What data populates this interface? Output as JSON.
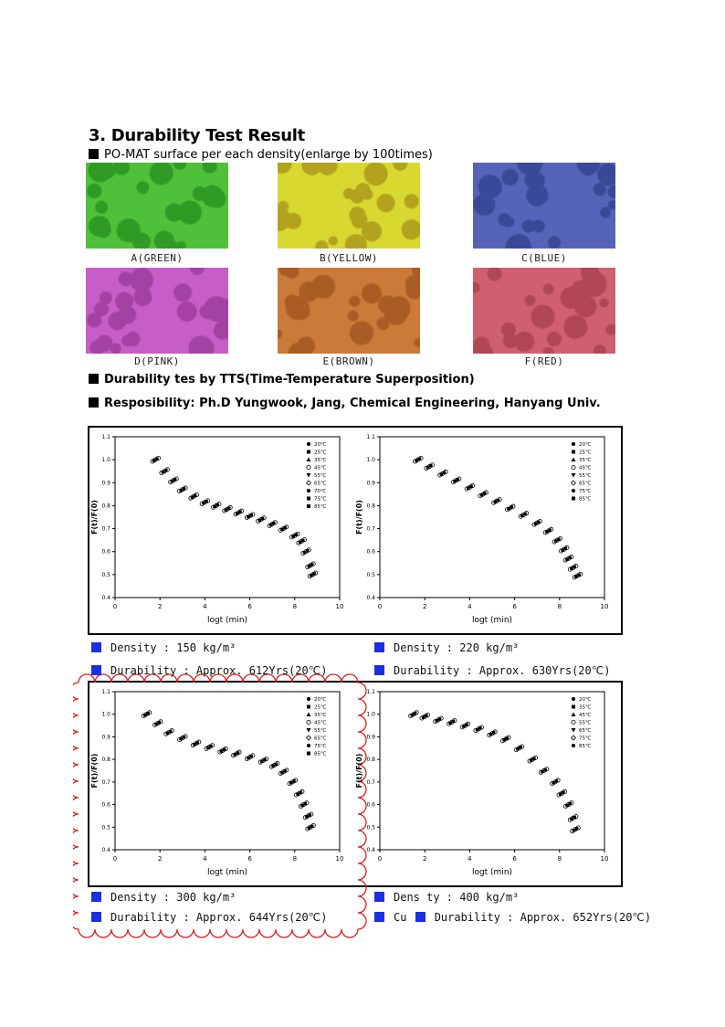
{
  "section_title": "3. Durability Test Result",
  "surface_heading": "PO-MAT surface per each density(enlarge by 100times)",
  "swatches": [
    {
      "label": "A(GREEN)",
      "color": "#4fc03a",
      "spot": "#2f9a24"
    },
    {
      "label": "B(YELLOW)",
      "color": "#d8d830",
      "spot": "#b3a21e"
    },
    {
      "label": "C(BLUE)",
      "color": "#5563b8",
      "spot": "#3a4898"
    },
    {
      "label": "D(PINK)",
      "color": "#c75ec7",
      "spot": "#a442a4"
    },
    {
      "label": "E(BROWN)",
      "color": "#cc7a3a",
      "spot": "#a95c24"
    },
    {
      "label": "F(RED)",
      "color": "#d06070",
      "spot": "#b04656"
    }
  ],
  "tts_line": "Durability tes by  TTS(Time-Temperature Superposition)",
  "resp_line": "Resposibility: Ph.D Yungwook, Jang, Chemical Engineering, Hanyang Univ.",
  "chart_data": [
    {
      "type": "scatter",
      "xlabel": "logt (min)",
      "ylabel": "F(t)/F(0)",
      "xlim": [
        0,
        10
      ],
      "ylim": [
        0.4,
        1.1
      ],
      "xticks": [
        "0",
        "2",
        "4",
        "6",
        "8",
        "10"
      ],
      "yticks": [
        "0.4",
        "0.5",
        "0.6",
        "0.7",
        "0.8",
        "0.9",
        "1.0",
        "1.1"
      ],
      "legend_position": "top-right",
      "legend": [
        "20℃",
        "25℃",
        "35℃",
        "45℃",
        "55℃",
        "65℃",
        "70℃",
        "75℃",
        "85℃"
      ],
      "x": [
        1.8,
        2.2,
        2.6,
        3.0,
        3.5,
        4.0,
        4.5,
        5.0,
        5.5,
        6.0,
        6.5,
        7.0,
        7.5,
        8.0,
        8.3,
        8.5,
        8.7,
        8.8
      ],
      "y": [
        1.0,
        0.95,
        0.91,
        0.87,
        0.84,
        0.815,
        0.8,
        0.785,
        0.77,
        0.755,
        0.74,
        0.72,
        0.7,
        0.67,
        0.645,
        0.6,
        0.54,
        0.5
      ],
      "density": "Density      : 150 kg/m³",
      "durability": "Durability  : Approx. 612Yrs(20℃)"
    },
    {
      "type": "scatter",
      "xlabel": "logt (min)",
      "ylabel": "F(t)/F(0)",
      "xlim": [
        0,
        10
      ],
      "ylim": [
        0.4,
        1.1
      ],
      "xticks": [
        "0",
        "2",
        "4",
        "6",
        "8",
        "10"
      ],
      "yticks": [
        "0.4",
        "0.5",
        "0.6",
        "0.7",
        "0.8",
        "0.9",
        "1.0",
        "1.1"
      ],
      "legend_position": "top-right",
      "legend": [
        "20℃",
        "25℃",
        "35℃",
        "45℃",
        "55℃",
        "65℃",
        "75℃",
        "85℃"
      ],
      "x": [
        1.7,
        2.2,
        2.8,
        3.4,
        4.0,
        4.6,
        5.2,
        5.8,
        6.4,
        7.0,
        7.5,
        7.9,
        8.2,
        8.4,
        8.6,
        8.8
      ],
      "y": [
        1.0,
        0.97,
        0.94,
        0.91,
        0.88,
        0.85,
        0.82,
        0.79,
        0.76,
        0.725,
        0.69,
        0.65,
        0.61,
        0.57,
        0.53,
        0.495
      ],
      "density": "Density      : 220 kg/m³",
      "durability": "Durability : Approx. 630Yrs(20℃)"
    },
    {
      "type": "scatter",
      "xlabel": "logt (min)",
      "ylabel": "F(t)/F(0)",
      "xlim": [
        0,
        10
      ],
      "ylim": [
        0.4,
        1.1
      ],
      "xticks": [
        "0",
        "2",
        "4",
        "6",
        "8",
        "10"
      ],
      "yticks": [
        "0.4",
        "0.5",
        "0.6",
        "0.7",
        "0.8",
        "0.9",
        "1.0",
        "1.1"
      ],
      "legend_position": "top-right",
      "legend": [
        "20℃",
        "25℃",
        "35℃",
        "45℃",
        "55℃",
        "65℃",
        "75℃",
        "85℃"
      ],
      "x": [
        1.4,
        1.9,
        2.4,
        3.0,
        3.6,
        4.2,
        4.8,
        5.4,
        6.0,
        6.6,
        7.1,
        7.5,
        7.9,
        8.2,
        8.4,
        8.6,
        8.7
      ],
      "y": [
        1.0,
        0.96,
        0.92,
        0.895,
        0.87,
        0.855,
        0.84,
        0.825,
        0.81,
        0.795,
        0.775,
        0.745,
        0.7,
        0.65,
        0.6,
        0.55,
        0.5
      ],
      "density": "Density      : 300 kg/m³",
      "durability": "Durability  : Approx. 644Yrs(20℃)"
    },
    {
      "type": "scatter",
      "xlabel": "logt (min)",
      "ylabel": "F(t)/F(0)",
      "xlim": [
        0,
        10
      ],
      "ylim": [
        0.4,
        1.1
      ],
      "xticks": [
        "0",
        "2",
        "4",
        "6",
        "8",
        "10"
      ],
      "yticks": [
        "0.4",
        "0.5",
        "0.6",
        "0.7",
        "0.8",
        "0.9",
        "1.0",
        "1.1"
      ],
      "legend_position": "top-right",
      "legend": [
        "20℃",
        "35℃",
        "45℃",
        "55℃",
        "65℃",
        "75℃",
        "85℃"
      ],
      "x": [
        1.5,
        2.0,
        2.6,
        3.2,
        3.8,
        4.4,
        5.0,
        5.6,
        6.2,
        6.8,
        7.3,
        7.8,
        8.1,
        8.4,
        8.6,
        8.7
      ],
      "y": [
        1.0,
        0.99,
        0.975,
        0.965,
        0.95,
        0.935,
        0.915,
        0.89,
        0.85,
        0.8,
        0.75,
        0.7,
        0.65,
        0.6,
        0.54,
        0.49
      ],
      "density": "Dens ty     : 400 kg/m³",
      "durability": "Cu",
      "durability_overlay": "Durability  : Approx. 652Yrs(20℃)"
    }
  ]
}
